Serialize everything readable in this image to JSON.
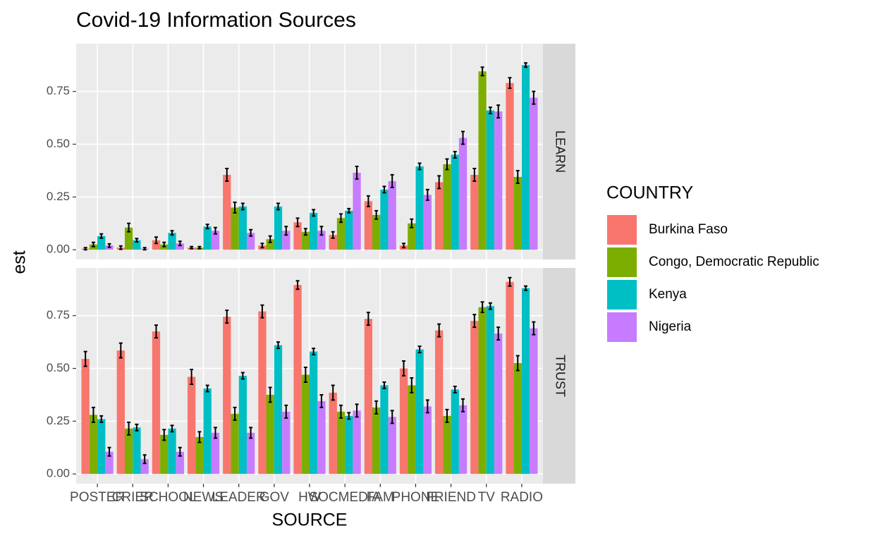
{
  "chart_data": {
    "type": "bar",
    "title": "Covid-19 Information Sources",
    "x_label": "SOURCE",
    "y_label": "est",
    "legend_title": "COUNTRY",
    "grid": true,
    "categories": [
      "POSTER",
      "CRIER",
      "SCHOOL",
      "NEWS",
      "LEADER",
      "GOV",
      "HW",
      "SOCMEDIA",
      "FAM",
      "PHONE",
      "FRIEND",
      "TV",
      "RADIO"
    ],
    "ylim": [
      -0.046,
      0.976
    ],
    "yticks": [
      {
        "value": 0,
        "label": "0.00"
      },
      0.25,
      {
        "value": 0.5,
        "label": "0.50"
      },
      0.75
    ],
    "series": [
      {
        "name": "Burkina Faso",
        "color": "#f8766d"
      },
      {
        "name": "Congo, Democratic Republic",
        "color": "#7cae00"
      },
      {
        "name": "Kenya",
        "color": "#00bfc4"
      },
      {
        "name": "Nigeria",
        "color": "#c77cff"
      }
    ],
    "facets": [
      {
        "label": "LEARN",
        "series": [
          {
            "values": [
              0.005,
              0.01,
              0.045,
              0.01,
              0.355,
              0.02,
              0.13,
              0.07,
              0.23,
              0.02,
              0.32,
              0.355,
              0.79
            ],
            "errors": [
              0.005,
              0.008,
              0.015,
              0.005,
              0.03,
              0.01,
              0.02,
              0.015,
              0.025,
              0.01,
              0.03,
              0.03,
              0.025
            ]
          },
          {
            "values": [
              0.025,
              0.105,
              0.025,
              0.01,
              0.2,
              0.05,
              0.085,
              0.15,
              0.165,
              0.125,
              0.405,
              0.845,
              0.345
            ],
            "errors": [
              0.01,
              0.02,
              0.01,
              0.005,
              0.025,
              0.015,
              0.015,
              0.02,
              0.02,
              0.02,
              0.025,
              0.02,
              0.03
            ]
          },
          {
            "values": [
              0.065,
              0.045,
              0.08,
              0.11,
              0.205,
              0.205,
              0.175,
              0.185,
              0.285,
              0.395,
              0.45,
              0.66,
              0.875
            ],
            "errors": [
              0.01,
              0.008,
              0.01,
              0.01,
              0.015,
              0.015,
              0.015,
              0.01,
              0.015,
              0.015,
              0.015,
              0.015,
              0.01
            ]
          },
          {
            "values": [
              0.02,
              0.005,
              0.03,
              0.09,
              0.08,
              0.09,
              0.09,
              0.365,
              0.325,
              0.26,
              0.53,
              0.655,
              0.72
            ],
            "errors": [
              0.008,
              0.005,
              0.01,
              0.015,
              0.015,
              0.02,
              0.02,
              0.03,
              0.03,
              0.025,
              0.03,
              0.03,
              0.03
            ]
          }
        ]
      },
      {
        "label": "TRUST",
        "series": [
          {
            "values": [
              0.545,
              0.585,
              0.675,
              0.46,
              0.745,
              0.77,
              0.895,
              0.385,
              0.735,
              0.5,
              0.68,
              0.725,
              0.91
            ],
            "errors": [
              0.035,
              0.035,
              0.03,
              0.035,
              0.03,
              0.03,
              0.02,
              0.035,
              0.03,
              0.035,
              0.03,
              0.03,
              0.02
            ]
          },
          {
            "values": [
              0.28,
              0.215,
              0.185,
              0.175,
              0.285,
              0.375,
              0.47,
              0.295,
              0.315,
              0.42,
              0.275,
              0.79,
              0.525
            ],
            "errors": [
              0.035,
              0.03,
              0.025,
              0.025,
              0.03,
              0.035,
              0.035,
              0.03,
              0.03,
              0.035,
              0.03,
              0.025,
              0.035
            ]
          },
          {
            "values": [
              0.26,
              0.22,
              0.215,
              0.405,
              0.465,
              0.61,
              0.58,
              0.275,
              0.42,
              0.59,
              0.4,
              0.795,
              0.88
            ],
            "errors": [
              0.015,
              0.015,
              0.015,
              0.015,
              0.015,
              0.015,
              0.015,
              0.015,
              0.015,
              0.015,
              0.015,
              0.015,
              0.01
            ]
          },
          {
            "values": [
              0.105,
              0.07,
              0.105,
              0.195,
              0.195,
              0.295,
              0.345,
              0.3,
              0.27,
              0.32,
              0.325,
              0.665,
              0.69
            ],
            "errors": [
              0.02,
              0.02,
              0.02,
              0.025,
              0.025,
              0.03,
              0.03,
              0.03,
              0.03,
              0.03,
              0.03,
              0.03,
              0.03
            ]
          }
        ]
      }
    ]
  }
}
